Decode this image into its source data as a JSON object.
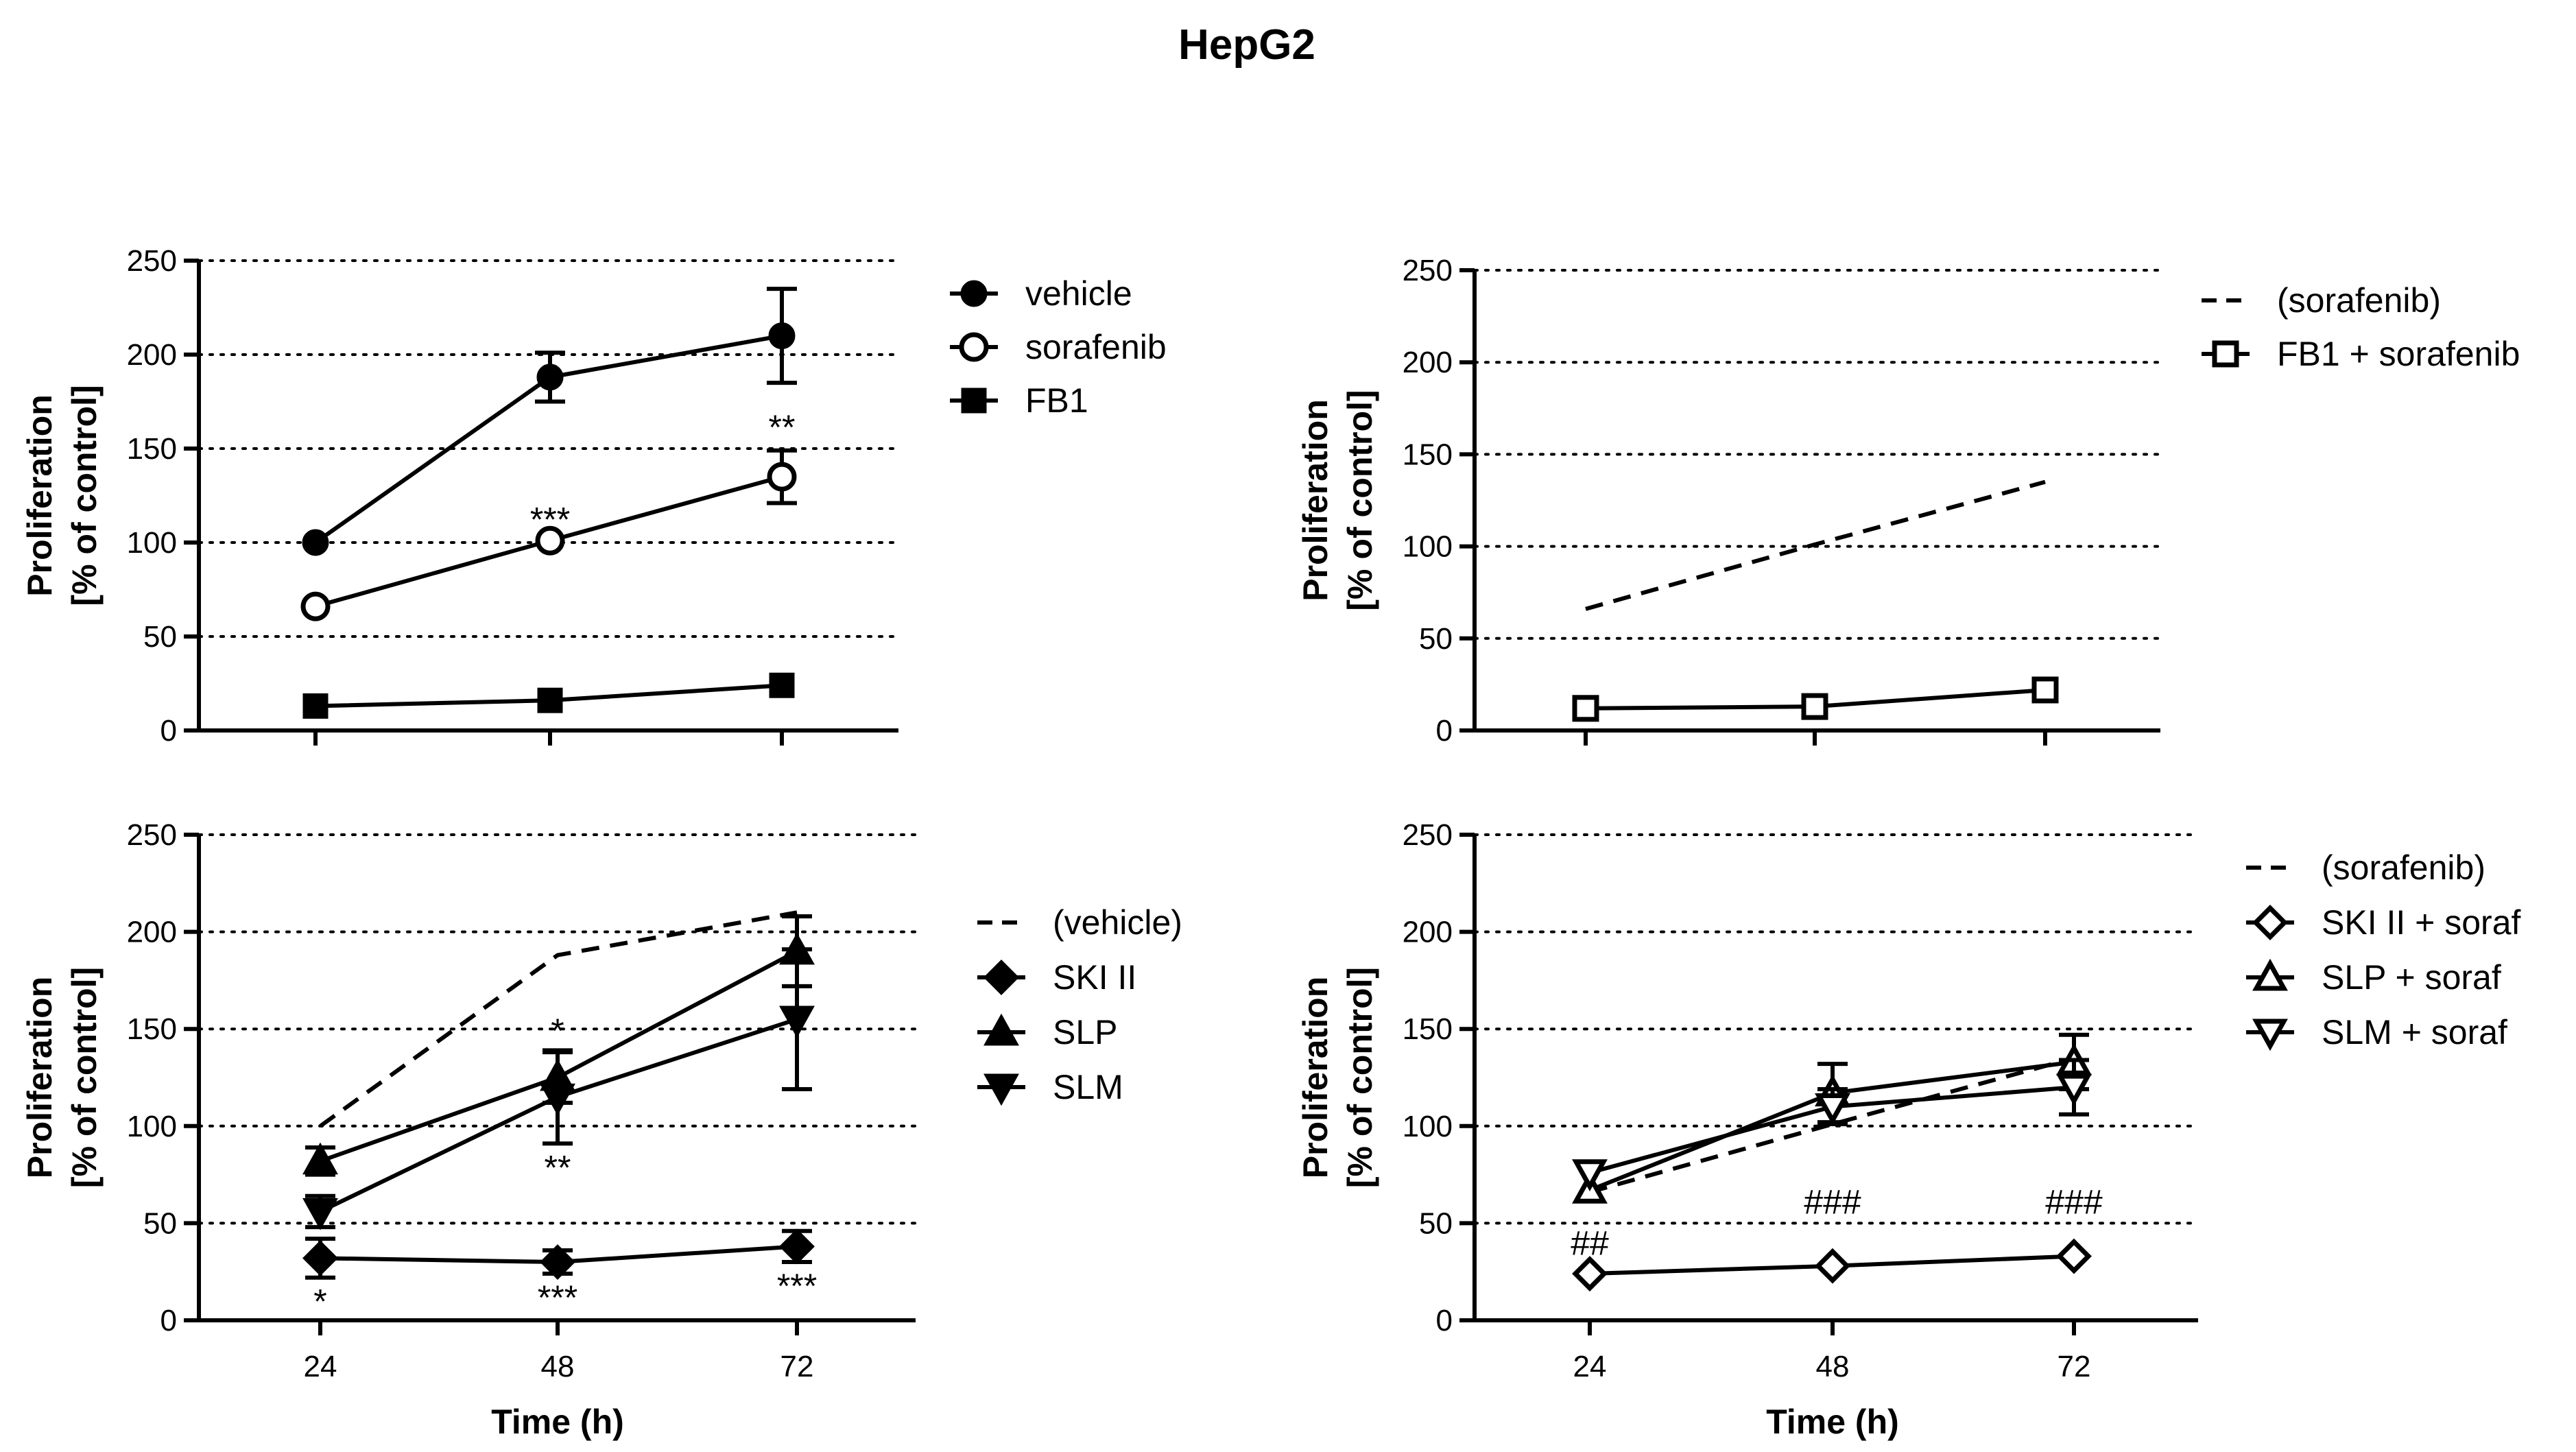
{
  "title": "HepG2",
  "colors": {
    "ink": "#000000",
    "background": "#ffffff"
  },
  "chart_data": [
    {
      "id": "top-left",
      "type": "line",
      "title": "",
      "xlabel": "",
      "ylabel_line1": "Proliferation",
      "ylabel_line2": "[% of control]",
      "x": [
        24,
        48,
        72
      ],
      "xticklabels": [
        "",
        "",
        ""
      ],
      "yticks": [
        "0",
        "50",
        "100",
        "150",
        "200",
        "250"
      ],
      "ytick_values": [
        0,
        50,
        100,
        150,
        200,
        250
      ],
      "ylim": [
        0,
        250
      ],
      "grid": "horizontal dotted",
      "legend_position": "right",
      "series": [
        {
          "name": "vehicle",
          "marker": "circle-filled",
          "line": "solid",
          "values": [
            100,
            188,
            210
          ],
          "errors": [
            0,
            13,
            25
          ]
        },
        {
          "name": "sorafenib",
          "marker": "circle-open",
          "line": "solid",
          "values": [
            66,
            101,
            135
          ],
          "errors": [
            0,
            0,
            14
          ]
        },
        {
          "name": "FB1",
          "marker": "square-filled",
          "line": "solid",
          "values": [
            13,
            16,
            24
          ],
          "errors": [
            0,
            0,
            0
          ]
        }
      ],
      "annotations": [
        {
          "text": "***",
          "x": 48,
          "y": 101,
          "position": "above"
        },
        {
          "text": "**",
          "x": 72,
          "y": 150,
          "position": "above"
        }
      ]
    },
    {
      "id": "top-right",
      "type": "line",
      "title": "",
      "xlabel": "",
      "ylabel_line1": "Proliferation",
      "ylabel_line2": "[% of control]",
      "x": [
        24,
        48,
        72
      ],
      "xticklabels": [
        "",
        "",
        ""
      ],
      "yticks": [
        "0",
        "50",
        "100",
        "150",
        "200",
        "250"
      ],
      "ytick_values": [
        0,
        50,
        100,
        150,
        200,
        250
      ],
      "ylim": [
        0,
        250
      ],
      "grid": "horizontal dotted",
      "legend_position": "right",
      "series": [
        {
          "name": "(sorafenib)",
          "marker": "none",
          "line": "dashed",
          "values": [
            66,
            101,
            135
          ],
          "errors": [
            0,
            0,
            0
          ]
        },
        {
          "name": "FB1 + sorafenib",
          "marker": "square-open",
          "line": "solid",
          "values": [
            12,
            13,
            22
          ],
          "errors": [
            0,
            0,
            0
          ]
        }
      ],
      "annotations": []
    },
    {
      "id": "bottom-left",
      "type": "line",
      "title": "",
      "xlabel": "Time (h)",
      "ylabel_line1": "Proliferation",
      "ylabel_line2": "[% of control]",
      "x": [
        24,
        48,
        72
      ],
      "xticklabels": [
        "24",
        "48",
        "72"
      ],
      "yticks": [
        "0",
        "50",
        "100",
        "150",
        "200",
        "250"
      ],
      "ytick_values": [
        0,
        50,
        100,
        150,
        200,
        250
      ],
      "ylim": [
        0,
        250
      ],
      "grid": "horizontal dotted",
      "legend_position": "right",
      "series": [
        {
          "name": "(vehicle)",
          "marker": "none",
          "line": "dashed",
          "values": [
            100,
            188,
            210
          ],
          "errors": [
            0,
            0,
            0
          ]
        },
        {
          "name": "SKI II",
          "marker": "diamond-filled",
          "line": "solid",
          "values": [
            32,
            30,
            38
          ],
          "errors": [
            10,
            6,
            8
          ]
        },
        {
          "name": "SLP",
          "marker": "triangle-up-filled",
          "line": "solid",
          "values": [
            82,
            125,
            190
          ],
          "errors": [
            7,
            13,
            18
          ]
        },
        {
          "name": "SLM",
          "marker": "triangle-down-filled",
          "line": "solid",
          "values": [
            56,
            115,
            155
          ],
          "errors": [
            8,
            24,
            36
          ]
        }
      ],
      "annotations": [
        {
          "text": "*",
          "x": 24,
          "y": 22,
          "position": "below"
        },
        {
          "text": "*",
          "x": 48,
          "y": 138,
          "position": "above"
        },
        {
          "text": "**",
          "x": 48,
          "y": 91,
          "position": "below"
        },
        {
          "text": "***",
          "x": 48,
          "y": 24,
          "position": "below"
        },
        {
          "text": "***",
          "x": 72,
          "y": 30,
          "position": "below"
        }
      ]
    },
    {
      "id": "bottom-right",
      "type": "line",
      "title": "",
      "xlabel": "Time (h)",
      "ylabel_line1": "Proliferation",
      "ylabel_line2": "[% of control]",
      "x": [
        24,
        48,
        72
      ],
      "xticklabels": [
        "24",
        "48",
        "72"
      ],
      "yticks": [
        "0",
        "50",
        "100",
        "150",
        "200",
        "250"
      ],
      "ytick_values": [
        0,
        50,
        100,
        150,
        200,
        250
      ],
      "ylim": [
        0,
        250
      ],
      "grid": "horizontal dotted",
      "legend_position": "right",
      "series": [
        {
          "name": "(sorafenib)",
          "marker": "none",
          "line": "dashed",
          "values": [
            66,
            101,
            135
          ],
          "errors": [
            0,
            0,
            0
          ]
        },
        {
          "name": "SKI II + soraf",
          "marker": "diamond-open",
          "line": "solid",
          "values": [
            24,
            28,
            33
          ],
          "errors": [
            0,
            0,
            0
          ]
        },
        {
          "name": "SLP + soraf",
          "marker": "triangle-up-open",
          "line": "solid",
          "values": [
            67,
            117,
            133
          ],
          "errors": [
            0,
            15,
            14
          ]
        },
        {
          "name": "SLM + soraf",
          "marker": "triangle-down-open",
          "line": "solid",
          "values": [
            76,
            110,
            120
          ],
          "errors": [
            0,
            9,
            14
          ]
        }
      ],
      "annotations": [
        {
          "text": "##",
          "x": 24,
          "y": 52,
          "position": "below"
        },
        {
          "text": "###",
          "x": 48,
          "y": 50,
          "position": "above"
        },
        {
          "text": "###",
          "x": 72,
          "y": 50,
          "position": "above"
        }
      ]
    }
  ]
}
